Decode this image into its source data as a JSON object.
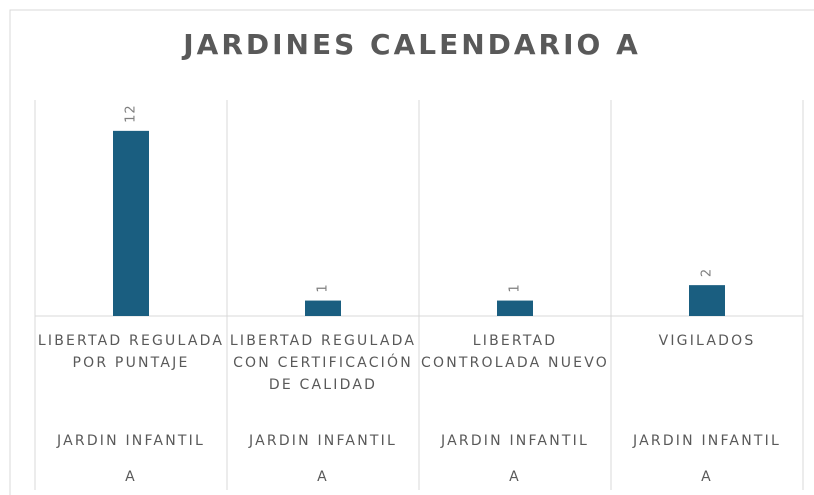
{
  "chart_data": {
    "type": "bar",
    "title": "JARDINES CALENDARIO A",
    "categories": [
      [
        "LIBERTAD REGULADA POR PUNTAJE",
        "JARDIN INFANTIL",
        "A"
      ],
      [
        "LIBERTAD REGULADA CON CERTIFICACIÓN DE CALIDAD",
        "JARDIN INFANTIL",
        "A"
      ],
      [
        "LIBERTAD CONTROLADA NUEVO",
        "JARDIN INFANTIL",
        "A"
      ],
      [
        "VIGILADOS",
        "JARDIN INFANTIL",
        "A"
      ]
    ],
    "values": [
      12,
      1,
      1,
      2
    ],
    "color": "#1a5e80",
    "ylim": [
      0,
      14
    ]
  }
}
